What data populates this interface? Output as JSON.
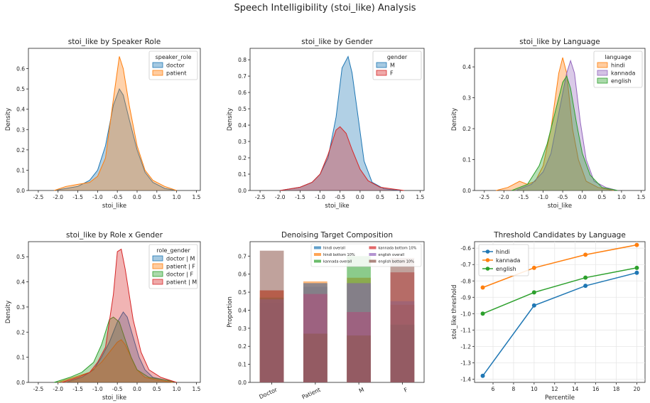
{
  "figure_title": "Speech Intelligibility (stoi_like) Analysis",
  "colors": {
    "blue": "#1f77b4",
    "orange": "#ff7f0e",
    "green": "#2ca02c",
    "red": "#d62728",
    "purple": "#9467bd",
    "brown": "#8c564b",
    "pink": "#e377c2",
    "gray": "#7f7f7f"
  },
  "chart_data": [
    {
      "type": "area",
      "title": "stoi_like by Speaker Role",
      "xlabel": "stoi_like",
      "ylabel": "Density",
      "xlim": [
        -2.75,
        1.6
      ],
      "ylim": [
        0,
        0.7
      ],
      "xticks": [
        "-2.5",
        "-2.0",
        "-1.5",
        "-1.0",
        "-0.5",
        "0.0",
        "0.5",
        "1.0",
        "1.5"
      ],
      "yticks": [
        "0.0",
        "0.1",
        "0.2",
        "0.3",
        "0.4",
        "0.5",
        "0.6"
      ],
      "legend_title": "speaker_role",
      "legend_position": "top-right",
      "series": [
        {
          "name": "doctor",
          "color": "#1f77b4",
          "x": [
            -2.1,
            -1.8,
            -1.5,
            -1.2,
            -1.0,
            -0.8,
            -0.6,
            -0.45,
            -0.35,
            -0.2,
            0.0,
            0.2,
            0.4,
            0.7,
            1.0
          ],
          "y": [
            0.0,
            0.01,
            0.02,
            0.05,
            0.1,
            0.22,
            0.42,
            0.5,
            0.47,
            0.35,
            0.2,
            0.09,
            0.04,
            0.01,
            0.0
          ]
        },
        {
          "name": "patient",
          "color": "#ff7f0e",
          "x": [
            -2.1,
            -1.8,
            -1.5,
            -1.2,
            -1.0,
            -0.8,
            -0.6,
            -0.45,
            -0.35,
            -0.2,
            0.0,
            0.2,
            0.4,
            0.7,
            1.0
          ],
          "y": [
            0.0,
            0.02,
            0.03,
            0.04,
            0.07,
            0.16,
            0.45,
            0.66,
            0.6,
            0.42,
            0.22,
            0.1,
            0.05,
            0.02,
            0.0
          ]
        }
      ]
    },
    {
      "type": "area",
      "title": "stoi_like by Gender",
      "xlabel": "stoi_like",
      "ylabel": "Density",
      "xlim": [
        -2.75,
        1.6
      ],
      "ylim": [
        0,
        0.87
      ],
      "xticks": [
        "-2.5",
        "-2.0",
        "-1.5",
        "-1.0",
        "-0.5",
        "0.0",
        "0.5",
        "1.0",
        "1.5"
      ],
      "yticks": [
        "0.0",
        "0.1",
        "0.2",
        "0.3",
        "0.4",
        "0.5",
        "0.6",
        "0.7",
        "0.8"
      ],
      "legend_title": "gender",
      "legend_position": "top-right",
      "series": [
        {
          "name": "M",
          "color": "#1f77b4",
          "x": [
            -2.0,
            -1.5,
            -1.2,
            -1.0,
            -0.8,
            -0.6,
            -0.45,
            -0.3,
            -0.2,
            -0.05,
            0.1,
            0.3,
            0.6,
            1.0
          ],
          "y": [
            0.0,
            0.02,
            0.05,
            0.1,
            0.2,
            0.45,
            0.75,
            0.82,
            0.72,
            0.45,
            0.18,
            0.05,
            0.01,
            0.0
          ]
        },
        {
          "name": "F",
          "color": "#d62728",
          "x": [
            -2.0,
            -1.5,
            -1.2,
            -1.0,
            -0.8,
            -0.6,
            -0.5,
            -0.35,
            -0.2,
            0.0,
            0.2,
            0.5,
            0.8,
            1.1
          ],
          "y": [
            0.0,
            0.02,
            0.05,
            0.1,
            0.22,
            0.37,
            0.39,
            0.35,
            0.25,
            0.13,
            0.06,
            0.02,
            0.01,
            0.0
          ]
        }
      ]
    },
    {
      "type": "area",
      "title": "stoi_like by Language",
      "xlabel": "stoi_like",
      "ylabel": "Density",
      "xlim": [
        -2.75,
        1.6
      ],
      "ylim": [
        0,
        0.46
      ],
      "xticks": [
        "-2.5",
        "-2.0",
        "-1.5",
        "-1.0",
        "-0.5",
        "0.0",
        "0.5",
        "1.0",
        "1.5"
      ],
      "yticks": [
        "0.0",
        "0.1",
        "0.2",
        "0.3",
        "0.4"
      ],
      "legend_title": "language",
      "legend_position": "top-right",
      "series": [
        {
          "name": "hindi",
          "color": "#ff7f0e",
          "x": [
            -2.2,
            -1.9,
            -1.6,
            -1.4,
            -1.2,
            -1.0,
            -0.8,
            -0.6,
            -0.5,
            -0.4,
            -0.25,
            -0.1,
            0.1,
            0.4,
            0.8
          ],
          "y": [
            0.0,
            0.01,
            0.03,
            0.02,
            0.03,
            0.08,
            0.2,
            0.38,
            0.43,
            0.38,
            0.2,
            0.1,
            0.03,
            0.01,
            0.0
          ]
        },
        {
          "name": "kannada",
          "color": "#9467bd",
          "x": [
            -1.7,
            -1.3,
            -1.0,
            -0.8,
            -0.6,
            -0.4,
            -0.3,
            -0.2,
            -0.05,
            0.1,
            0.3,
            0.6,
            0.9
          ],
          "y": [
            0.0,
            0.02,
            0.06,
            0.12,
            0.25,
            0.38,
            0.42,
            0.38,
            0.22,
            0.1,
            0.03,
            0.01,
            0.0
          ]
        },
        {
          "name": "english",
          "color": "#2ca02c",
          "x": [
            -1.8,
            -1.4,
            -1.1,
            -0.9,
            -0.7,
            -0.5,
            -0.4,
            -0.3,
            -0.15,
            0.0,
            0.2,
            0.5,
            0.9
          ],
          "y": [
            0.0,
            0.02,
            0.08,
            0.15,
            0.25,
            0.35,
            0.37,
            0.33,
            0.22,
            0.12,
            0.05,
            0.01,
            0.0
          ]
        }
      ]
    },
    {
      "type": "area",
      "title": "stoi_like by Role x Gender",
      "xlabel": "stoi_like",
      "ylabel": "Density",
      "xlim": [
        -2.75,
        1.6
      ],
      "ylim": [
        0,
        0.56
      ],
      "xticks": [
        "-2.5",
        "-2.0",
        "-1.5",
        "-1.0",
        "-0.5",
        "0.0",
        "0.5",
        "1.0",
        "1.5"
      ],
      "yticks": [
        "0.0",
        "0.1",
        "0.2",
        "0.3",
        "0.4",
        "0.5"
      ],
      "legend_title": "role_gender",
      "legend_position": "top-right",
      "series": [
        {
          "name": "doctor | M",
          "color": "#1f77b4",
          "x": [
            -1.8,
            -1.4,
            -1.1,
            -0.9,
            -0.7,
            -0.5,
            -0.35,
            -0.25,
            -0.1,
            0.05,
            0.2,
            0.4,
            0.7,
            1.0
          ],
          "y": [
            0.0,
            0.02,
            0.05,
            0.1,
            0.16,
            0.24,
            0.28,
            0.26,
            0.18,
            0.1,
            0.05,
            0.02,
            0.01,
            0.0
          ]
        },
        {
          "name": "patient | F",
          "color": "#ff7f0e",
          "x": [
            -2.0,
            -1.6,
            -1.2,
            -0.9,
            -0.7,
            -0.5,
            -0.4,
            -0.3,
            -0.15,
            0.0,
            0.2,
            0.5,
            0.9
          ],
          "y": [
            0.0,
            0.02,
            0.04,
            0.08,
            0.12,
            0.16,
            0.17,
            0.15,
            0.1,
            0.05,
            0.02,
            0.01,
            0.0
          ]
        },
        {
          "name": "doctor | F",
          "color": "#2ca02c",
          "x": [
            -2.1,
            -1.7,
            -1.4,
            -1.1,
            -0.9,
            -0.7,
            -0.6,
            -0.45,
            -0.3,
            -0.15,
            0.0,
            0.3,
            0.7,
            1.0
          ],
          "y": [
            0.0,
            0.02,
            0.04,
            0.08,
            0.15,
            0.25,
            0.26,
            0.24,
            0.17,
            0.1,
            0.05,
            0.02,
            0.01,
            0.0
          ]
        },
        {
          "name": "patient | M",
          "color": "#d62728",
          "x": [
            -1.9,
            -1.5,
            -1.2,
            -1.0,
            -0.8,
            -0.6,
            -0.5,
            -0.4,
            -0.3,
            -0.1,
            0.1,
            0.3,
            0.6,
            1.0
          ],
          "y": [
            0.0,
            0.02,
            0.04,
            0.08,
            0.14,
            0.35,
            0.52,
            0.53,
            0.45,
            0.25,
            0.12,
            0.05,
            0.02,
            0.0
          ]
        }
      ]
    },
    {
      "type": "bar",
      "title": "Denoising Target Composition",
      "ylabel": "Proportion",
      "ylim": [
        0,
        0.78
      ],
      "categories": [
        "Doctor",
        "Patient",
        "M",
        "F"
      ],
      "yticks": [
        "0.0",
        "0.1",
        "0.2",
        "0.3",
        "0.4",
        "0.5",
        "0.6",
        "0.7"
      ],
      "legend_position": "top",
      "series": [
        {
          "name": "hindi overall",
          "color": "#1f77b4",
          "values": [
            0.44,
            0.53,
            0.55,
            0.29
          ]
        },
        {
          "name": "hindi bottom 10%",
          "color": "#ff7f0e",
          "values": [
            0.51,
            0.56,
            0.58,
            0.43
          ]
        },
        {
          "name": "kannada overall",
          "color": "#2ca02c",
          "values": [
            0.47,
            0.55,
            0.7,
            0.32
          ]
        },
        {
          "name": "kannada bottom 10%",
          "color": "#d62728",
          "values": [
            0.51,
            0.49,
            0.39,
            0.61
          ]
        },
        {
          "name": "english overall",
          "color": "#9467bd",
          "values": [
            0.46,
            0.55,
            0.55,
            0.45
          ]
        },
        {
          "name": "english bottom 10%",
          "color": "#8c564b",
          "values": [
            0.73,
            0.27,
            0.26,
            0.69
          ]
        }
      ]
    },
    {
      "type": "line",
      "title": "Threshold Candidates by Language",
      "xlabel": "Percentile",
      "ylabel": "stoi_like threshold",
      "xlim": [
        4.2,
        20.8
      ],
      "ylim": [
        -1.42,
        -0.56
      ],
      "xticks": [
        "6",
        "8",
        "10",
        "12",
        "14",
        "16",
        "18",
        "20"
      ],
      "yticks": [
        "-1.4",
        "-1.3",
        "-1.2",
        "-1.1",
        "-1.0",
        "-0.9",
        "-0.8",
        "-0.7",
        "-0.6"
      ],
      "legend_position": "top-left",
      "x": [
        5,
        10,
        15,
        20
      ],
      "series": [
        {
          "name": "hindi",
          "color": "#1f77b4",
          "values": [
            -1.38,
            -0.95,
            -0.83,
            -0.75
          ]
        },
        {
          "name": "kannada",
          "color": "#ff7f0e",
          "values": [
            -0.84,
            -0.72,
            -0.64,
            -0.58
          ]
        },
        {
          "name": "english",
          "color": "#2ca02c",
          "values": [
            -1.0,
            -0.87,
            -0.78,
            -0.72
          ]
        }
      ]
    }
  ]
}
